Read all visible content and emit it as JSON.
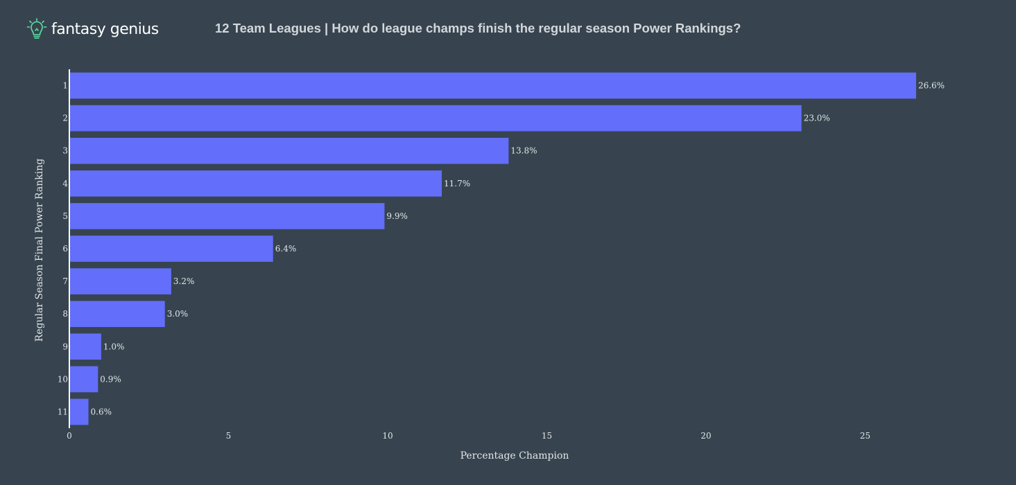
{
  "brand": {
    "name": "fantasy genius",
    "icon": "lightbulb-icon",
    "accent": "#5be3a5"
  },
  "chart_data": {
    "type": "bar",
    "orientation": "horizontal",
    "title": "12 Team Leagues | How do league champs finish the regular season Power Rankings?",
    "xlabel": "Percentage Champion",
    "ylabel": "Regular Season Final Power Ranking",
    "categories": [
      "1",
      "2",
      "3",
      "4",
      "5",
      "6",
      "7",
      "8",
      "9",
      "10",
      "11"
    ],
    "values": [
      26.6,
      23.0,
      13.8,
      11.7,
      9.9,
      6.4,
      3.2,
      3.0,
      1.0,
      0.9,
      0.6
    ],
    "data_labels": [
      "26.6%",
      "23.0%",
      "13.8%",
      "11.7%",
      "9.9%",
      "6.4%",
      "3.2%",
      "3.0%",
      "1.0%",
      "0.9%",
      "0.6%"
    ],
    "xticks": [
      0,
      5,
      10,
      15,
      20,
      25
    ],
    "xlim": [
      0,
      30
    ],
    "grid": false,
    "bar_color": "#636efa",
    "background": "#37444f"
  }
}
